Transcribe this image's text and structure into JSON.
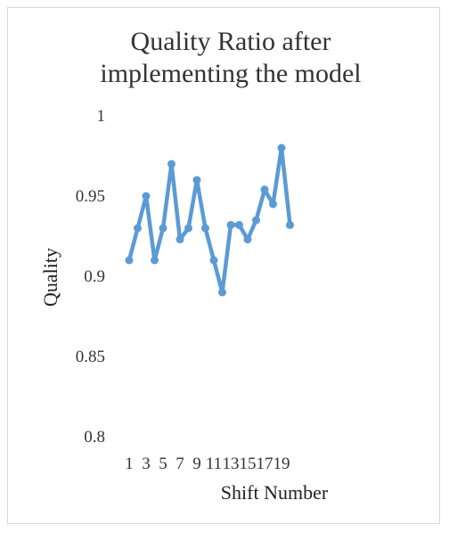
{
  "chart_data": {
    "type": "line",
    "title_lines": [
      "Quality Ratio after",
      "implementing the model"
    ],
    "xlabel": "Shift Number",
    "ylabel": "Quality",
    "x": [
      1,
      2,
      3,
      4,
      5,
      6,
      7,
      8,
      9,
      10,
      11,
      12,
      13,
      14,
      15,
      16,
      17,
      18,
      19,
      20
    ],
    "x_tick_labels": [
      "1",
      "3",
      "5",
      "7",
      "9",
      "11",
      "13",
      "15",
      "17",
      "19"
    ],
    "y_tick_labels": [
      "0.8",
      "0.85",
      "0.9",
      "0.95",
      "1"
    ],
    "ylim": [
      0.8,
      1.0
    ],
    "grid": false,
    "legend": "none",
    "series": [
      {
        "values": [
          0.91,
          0.93,
          0.95,
          0.91,
          0.93,
          0.97,
          0.923,
          0.93,
          0.96,
          0.93,
          0.91,
          0.89,
          0.932,
          0.932,
          0.923,
          0.935,
          0.954,
          0.945,
          0.98,
          0.932
        ],
        "color": "#5b9bd5"
      }
    ]
  }
}
